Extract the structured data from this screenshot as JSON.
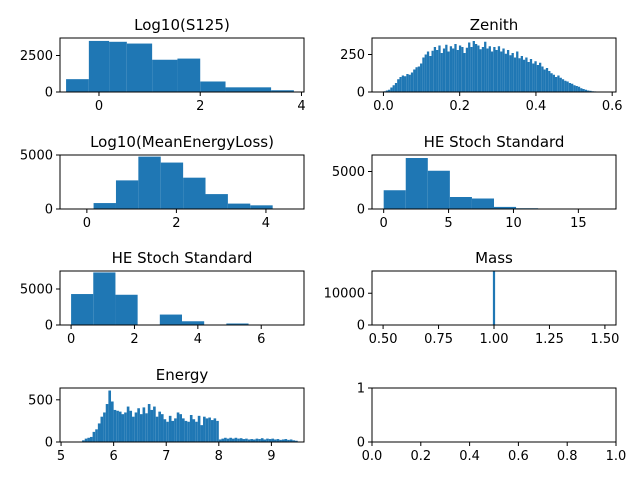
{
  "figure": {
    "bar_color": "#1f77b4"
  },
  "chart_data": [
    {
      "type": "bar",
      "title": "Log10(S125)",
      "xlim": [
        -0.77,
        4.05
      ],
      "ylim": [
        0,
        3700
      ],
      "xticks": [
        0,
        2,
        4
      ],
      "yticks": [
        0,
        2500
      ],
      "bins": [
        [
          -0.65,
          -0.2,
          880
        ],
        [
          -0.2,
          0.2,
          3500
        ],
        [
          0.2,
          0.55,
          3440
        ],
        [
          0.55,
          1.05,
          3320
        ],
        [
          1.05,
          1.55,
          2210
        ],
        [
          1.55,
          2.0,
          2290
        ],
        [
          2.0,
          2.5,
          720
        ],
        [
          2.5,
          3.4,
          320
        ],
        [
          3.4,
          3.85,
          120
        ]
      ]
    },
    {
      "type": "bar",
      "title": "Zenith",
      "xlim": [
        -0.03,
        0.61
      ],
      "ylim": [
        0,
        360
      ],
      "xticks": [
        0.0,
        0.2,
        0.4,
        0.6
      ],
      "yticks": [
        0,
        250
      ],
      "bins": [
        [
          0.0,
          0.006,
          5
        ],
        [
          0.006,
          0.012,
          10
        ],
        [
          0.012,
          0.018,
          15
        ],
        [
          0.018,
          0.024,
          30
        ],
        [
          0.024,
          0.03,
          45
        ],
        [
          0.03,
          0.036,
          60
        ],
        [
          0.036,
          0.042,
          85
        ],
        [
          0.042,
          0.048,
          100
        ],
        [
          0.048,
          0.054,
          110
        ],
        [
          0.054,
          0.06,
          105
        ],
        [
          0.06,
          0.066,
          120
        ],
        [
          0.066,
          0.072,
          115
        ],
        [
          0.072,
          0.078,
          130
        ],
        [
          0.078,
          0.084,
          150
        ],
        [
          0.084,
          0.09,
          165
        ],
        [
          0.09,
          0.096,
          170
        ],
        [
          0.096,
          0.102,
          190
        ],
        [
          0.102,
          0.108,
          230
        ],
        [
          0.108,
          0.114,
          250
        ],
        [
          0.114,
          0.12,
          270
        ],
        [
          0.12,
          0.126,
          240
        ],
        [
          0.126,
          0.132,
          275
        ],
        [
          0.132,
          0.138,
          300
        ],
        [
          0.138,
          0.144,
          280
        ],
        [
          0.144,
          0.15,
          310
        ],
        [
          0.15,
          0.156,
          260
        ],
        [
          0.156,
          0.162,
          290
        ],
        [
          0.162,
          0.168,
          315
        ],
        [
          0.168,
          0.174,
          270
        ],
        [
          0.174,
          0.18,
          305
        ],
        [
          0.18,
          0.186,
          290
        ],
        [
          0.186,
          0.192,
          320
        ],
        [
          0.192,
          0.198,
          280
        ],
        [
          0.198,
          0.204,
          310
        ],
        [
          0.204,
          0.21,
          300
        ],
        [
          0.21,
          0.216,
          260
        ],
        [
          0.216,
          0.222,
          295
        ],
        [
          0.222,
          0.228,
          330
        ],
        [
          0.228,
          0.234,
          300
        ],
        [
          0.234,
          0.24,
          340
        ],
        [
          0.24,
          0.246,
          320
        ],
        [
          0.246,
          0.252,
          310
        ],
        [
          0.252,
          0.258,
          285
        ],
        [
          0.258,
          0.264,
          300
        ],
        [
          0.264,
          0.27,
          335
        ],
        [
          0.27,
          0.276,
          290
        ],
        [
          0.276,
          0.282,
          305
        ],
        [
          0.282,
          0.288,
          270
        ],
        [
          0.288,
          0.294,
          300
        ],
        [
          0.294,
          0.3,
          280
        ],
        [
          0.3,
          0.306,
          305
        ],
        [
          0.306,
          0.312,
          270
        ],
        [
          0.312,
          0.318,
          290
        ],
        [
          0.318,
          0.324,
          255
        ],
        [
          0.324,
          0.33,
          280
        ],
        [
          0.33,
          0.336,
          245
        ],
        [
          0.336,
          0.342,
          260
        ],
        [
          0.342,
          0.348,
          230
        ],
        [
          0.348,
          0.354,
          270
        ],
        [
          0.354,
          0.36,
          225
        ],
        [
          0.36,
          0.366,
          240
        ],
        [
          0.366,
          0.372,
          215
        ],
        [
          0.372,
          0.378,
          230
        ],
        [
          0.378,
          0.384,
          200
        ],
        [
          0.384,
          0.39,
          220
        ],
        [
          0.39,
          0.396,
          190
        ],
        [
          0.396,
          0.402,
          205
        ],
        [
          0.402,
          0.408,
          180
        ],
        [
          0.408,
          0.414,
          195
        ],
        [
          0.414,
          0.42,
          170
        ],
        [
          0.42,
          0.426,
          150
        ],
        [
          0.426,
          0.432,
          160
        ],
        [
          0.432,
          0.438,
          140
        ],
        [
          0.438,
          0.444,
          125
        ],
        [
          0.444,
          0.45,
          115
        ],
        [
          0.45,
          0.456,
          100
        ],
        [
          0.456,
          0.462,
          110
        ],
        [
          0.462,
          0.468,
          95
        ],
        [
          0.468,
          0.474,
          85
        ],
        [
          0.474,
          0.48,
          75
        ],
        [
          0.48,
          0.486,
          70
        ],
        [
          0.486,
          0.492,
          60
        ],
        [
          0.492,
          0.498,
          55
        ],
        [
          0.498,
          0.504,
          45
        ],
        [
          0.504,
          0.51,
          40
        ],
        [
          0.51,
          0.516,
          35
        ],
        [
          0.516,
          0.522,
          25
        ],
        [
          0.522,
          0.528,
          20
        ],
        [
          0.528,
          0.534,
          15
        ],
        [
          0.534,
          0.54,
          10
        ],
        [
          0.54,
          0.546,
          8
        ],
        [
          0.546,
          0.552,
          5
        ],
        [
          0.552,
          0.558,
          4
        ],
        [
          0.558,
          0.564,
          3
        ],
        [
          0.564,
          0.57,
          2
        ],
        [
          0.57,
          0.576,
          1
        ]
      ]
    },
    {
      "type": "bar",
      "title": "Log10(MeanEnergyLoss)",
      "xlim": [
        -0.6,
        4.85
      ],
      "ylim": [
        0,
        5000
      ],
      "xticks": [
        0,
        2,
        4
      ],
      "yticks": [
        0,
        5000
      ],
      "bins": [
        [
          -0.4,
          0.15,
          40
        ],
        [
          0.15,
          0.65,
          550
        ],
        [
          0.65,
          1.15,
          2650
        ],
        [
          1.15,
          1.65,
          4850
        ],
        [
          1.65,
          2.15,
          4300
        ],
        [
          2.15,
          2.65,
          2900
        ],
        [
          2.65,
          3.15,
          1380
        ],
        [
          3.15,
          3.65,
          500
        ],
        [
          3.65,
          4.15,
          340
        ],
        [
          4.15,
          4.65,
          40
        ]
      ]
    },
    {
      "type": "bar",
      "title": "HE Stoch Standard",
      "xlim": [
        -0.9,
        17.9
      ],
      "ylim": [
        0,
        7200
      ],
      "xticks": [
        0,
        5,
        10,
        15
      ],
      "yticks": [
        0,
        5000
      ],
      "bins": [
        [
          0.0,
          1.7,
          2500
        ],
        [
          1.7,
          3.4,
          6800
        ],
        [
          3.4,
          5.1,
          5100
        ],
        [
          5.1,
          6.8,
          1600
        ],
        [
          6.8,
          8.5,
          1400
        ],
        [
          8.5,
          10.2,
          280
        ],
        [
          10.2,
          11.9,
          100
        ],
        [
          11.9,
          13.6,
          60
        ],
        [
          13.6,
          15.3,
          20
        ],
        [
          15.3,
          17.0,
          10
        ]
      ]
    },
    {
      "type": "bar",
      "title": "HE Stoch Standard",
      "xlim": [
        -0.35,
        7.35
      ],
      "ylim": [
        0,
        7500
      ],
      "xticks": [
        0,
        2,
        4,
        6
      ],
      "yticks": [
        0,
        5000
      ],
      "bins": [
        [
          0.0,
          0.7,
          4300
        ],
        [
          0.7,
          1.4,
          7300
        ],
        [
          1.4,
          2.1,
          4200
        ],
        [
          2.1,
          2.8,
          50
        ],
        [
          2.8,
          3.5,
          1450
        ],
        [
          3.5,
          4.2,
          520
        ],
        [
          4.2,
          4.9,
          50
        ],
        [
          4.9,
          5.6,
          210
        ],
        [
          5.6,
          6.3,
          30
        ],
        [
          6.3,
          7.0,
          10
        ]
      ]
    },
    {
      "type": "bar",
      "title": "Mass",
      "xlim": [
        0.45,
        1.55
      ],
      "ylim": [
        0,
        17000
      ],
      "xticks": [
        0.5,
        0.75,
        1.0,
        1.25,
        1.5
      ],
      "yticks": [
        0,
        10000
      ],
      "bins": [
        [
          0.995,
          1.005,
          17000
        ]
      ]
    },
    {
      "type": "bar",
      "title": "Energy",
      "xlim": [
        4.98,
        9.62
      ],
      "ylim": [
        0,
        640
      ],
      "xticks": [
        5,
        6,
        7,
        8,
        9
      ],
      "yticks": [
        0,
        500
      ],
      "bins": [
        [
          5.4,
          5.45,
          20
        ],
        [
          5.45,
          5.5,
          40
        ],
        [
          5.5,
          5.55,
          50
        ],
        [
          5.55,
          5.6,
          60
        ],
        [
          5.6,
          5.65,
          120
        ],
        [
          5.65,
          5.7,
          150
        ],
        [
          5.7,
          5.75,
          220
        ],
        [
          5.75,
          5.8,
          300
        ],
        [
          5.8,
          5.85,
          350
        ],
        [
          5.85,
          5.9,
          450
        ],
        [
          5.9,
          5.95,
          610
        ],
        [
          5.95,
          6.0,
          480
        ],
        [
          6.0,
          6.05,
          380
        ],
        [
          6.05,
          6.1,
          370
        ],
        [
          6.1,
          6.15,
          360
        ],
        [
          6.15,
          6.2,
          330
        ],
        [
          6.2,
          6.25,
          350
        ],
        [
          6.25,
          6.3,
          420
        ],
        [
          6.3,
          6.35,
          370
        ],
        [
          6.35,
          6.4,
          300
        ],
        [
          6.4,
          6.45,
          350
        ],
        [
          6.45,
          6.5,
          400
        ],
        [
          6.5,
          6.55,
          330
        ],
        [
          6.55,
          6.6,
          410
        ],
        [
          6.6,
          6.65,
          340
        ],
        [
          6.65,
          6.7,
          450
        ],
        [
          6.7,
          6.75,
          380
        ],
        [
          6.75,
          6.8,
          420
        ],
        [
          6.8,
          6.85,
          300
        ],
        [
          6.85,
          6.9,
          360
        ],
        [
          6.9,
          6.95,
          330
        ],
        [
          6.95,
          7.0,
          270
        ],
        [
          7.0,
          7.05,
          240
        ],
        [
          7.05,
          7.1,
          310
        ],
        [
          7.1,
          7.15,
          250
        ],
        [
          7.15,
          7.2,
          280
        ],
        [
          7.2,
          7.25,
          350
        ],
        [
          7.25,
          7.3,
          330
        ],
        [
          7.3,
          7.35,
          280
        ],
        [
          7.35,
          7.4,
          250
        ],
        [
          7.4,
          7.45,
          240
        ],
        [
          7.45,
          7.5,
          320
        ],
        [
          7.5,
          7.55,
          270
        ],
        [
          7.55,
          7.6,
          240
        ],
        [
          7.6,
          7.65,
          310
        ],
        [
          7.65,
          7.7,
          200
        ],
        [
          7.7,
          7.75,
          300
        ],
        [
          7.75,
          7.8,
          280
        ],
        [
          7.8,
          7.85,
          290
        ],
        [
          7.85,
          7.9,
          260
        ],
        [
          7.9,
          7.95,
          280
        ],
        [
          7.95,
          8.0,
          250
        ],
        [
          8.0,
          8.05,
          30
        ],
        [
          8.05,
          8.1,
          40
        ],
        [
          8.1,
          8.15,
          50
        ],
        [
          8.15,
          8.2,
          40
        ],
        [
          8.2,
          8.25,
          50
        ],
        [
          8.25,
          8.3,
          40
        ],
        [
          8.3,
          8.35,
          50
        ],
        [
          8.35,
          8.4,
          40
        ],
        [
          8.4,
          8.45,
          45
        ],
        [
          8.45,
          8.5,
          35
        ],
        [
          8.5,
          8.55,
          40
        ],
        [
          8.55,
          8.6,
          30
        ],
        [
          8.6,
          8.65,
          35
        ],
        [
          8.65,
          8.7,
          30
        ],
        [
          8.7,
          8.75,
          40
        ],
        [
          8.75,
          8.8,
          35
        ],
        [
          8.8,
          8.85,
          45
        ],
        [
          8.85,
          8.9,
          30
        ],
        [
          8.9,
          8.95,
          40
        ],
        [
          8.95,
          9.0,
          35
        ],
        [
          9.0,
          9.05,
          40
        ],
        [
          9.05,
          9.1,
          30
        ],
        [
          9.1,
          9.15,
          35
        ],
        [
          9.15,
          9.2,
          25
        ],
        [
          9.2,
          9.25,
          30
        ],
        [
          9.25,
          9.3,
          35
        ],
        [
          9.3,
          9.35,
          25
        ],
        [
          9.35,
          9.4,
          30
        ],
        [
          9.4,
          9.45,
          20
        ],
        [
          9.45,
          9.5,
          15
        ]
      ]
    },
    {
      "type": "bar",
      "title": "",
      "xlim": [
        0,
        1
      ],
      "ylim": [
        0,
        1
      ],
      "xticks": [
        0.0,
        0.2,
        0.4,
        0.6,
        0.8,
        1.0
      ],
      "yticks": [
        0,
        1
      ],
      "bins": []
    }
  ]
}
